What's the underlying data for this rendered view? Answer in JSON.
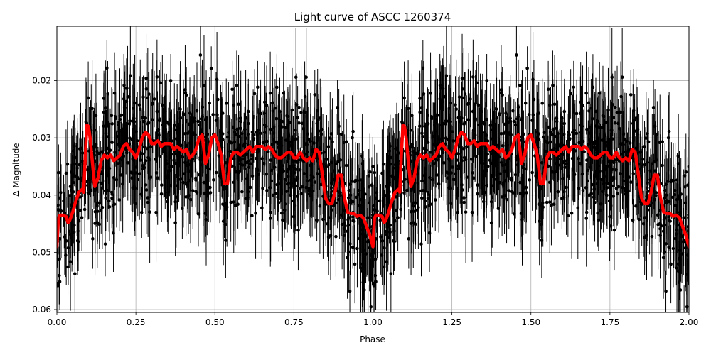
{
  "chart_data": {
    "type": "scatter",
    "title": "Light curve of ASCC 1260374",
    "xlabel": "Phase",
    "ylabel": "Δ Magnitude",
    "xlim": [
      0.0,
      2.0
    ],
    "ylim": [
      0.0605,
      0.0105
    ],
    "y_inverted": true,
    "grid": true,
    "xticks": [
      0.0,
      0.25,
      0.5,
      0.75,
      1.0,
      1.25,
      1.5,
      1.75,
      2.0
    ],
    "xtick_labels": [
      "0.00",
      "0.25",
      "0.50",
      "0.75",
      "1.00",
      "1.25",
      "1.50",
      "1.75",
      "2.00"
    ],
    "yticks": [
      0.02,
      0.03,
      0.04,
      0.05,
      0.06
    ],
    "ytick_labels": [
      "0.02",
      "0.03",
      "0.04",
      "0.05",
      "0.06"
    ],
    "series": [
      {
        "kind": "errorbar-points",
        "color": "#000000",
        "typical_scatter": 0.008,
        "typical_error": 0.006
      },
      {
        "kind": "binned-line",
        "color": "#ff0000",
        "x": [
          0.0,
          0.005,
          0.01,
          0.02,
          0.03,
          0.035,
          0.04,
          0.05,
          0.06,
          0.07,
          0.08,
          0.085,
          0.09,
          0.095,
          0.1,
          0.105,
          0.11,
          0.12,
          0.13,
          0.14,
          0.15,
          0.16,
          0.17,
          0.18,
          0.19,
          0.2,
          0.21,
          0.22,
          0.23,
          0.24,
          0.25,
          0.26,
          0.27,
          0.28,
          0.29,
          0.3,
          0.31,
          0.32,
          0.33,
          0.34,
          0.35,
          0.36,
          0.37,
          0.38,
          0.39,
          0.4,
          0.41,
          0.42,
          0.43,
          0.44,
          0.45,
          0.46,
          0.47,
          0.48,
          0.49,
          0.5,
          0.51,
          0.52,
          0.53,
          0.54,
          0.55,
          0.56,
          0.57,
          0.58,
          0.59,
          0.6,
          0.61,
          0.62,
          0.63,
          0.64,
          0.65,
          0.66,
          0.67,
          0.68,
          0.69,
          0.7,
          0.71,
          0.72,
          0.73,
          0.74,
          0.75,
          0.76,
          0.77,
          0.78,
          0.79,
          0.8,
          0.81,
          0.82,
          0.83,
          0.84,
          0.85,
          0.86,
          0.87,
          0.88,
          0.89,
          0.9,
          0.91,
          0.92,
          0.93,
          0.94,
          0.95,
          0.96,
          0.97,
          0.98,
          0.99,
          1.0
        ],
        "y": [
          0.049,
          0.044,
          0.0435,
          0.0435,
          0.0438,
          0.0448,
          0.0445,
          0.043,
          0.041,
          0.0395,
          0.039,
          0.0395,
          0.033,
          0.0278,
          0.028,
          0.03,
          0.033,
          0.0385,
          0.037,
          0.034,
          0.033,
          0.0335,
          0.033,
          0.034,
          0.0335,
          0.033,
          0.0315,
          0.031,
          0.032,
          0.0325,
          0.0335,
          0.032,
          0.03,
          0.029,
          0.0295,
          0.031,
          0.031,
          0.0305,
          0.0315,
          0.031,
          0.031,
          0.031,
          0.032,
          0.0315,
          0.032,
          0.0325,
          0.032,
          0.0335,
          0.033,
          0.032,
          0.03,
          0.0295,
          0.0345,
          0.033,
          0.03,
          0.0295,
          0.031,
          0.033,
          0.038,
          0.038,
          0.0335,
          0.0325,
          0.0325,
          0.033,
          0.0325,
          0.032,
          0.0315,
          0.0325,
          0.0315,
          0.0315,
          0.0315,
          0.032,
          0.0315,
          0.032,
          0.033,
          0.0335,
          0.0335,
          0.033,
          0.0325,
          0.0325,
          0.0335,
          0.0335,
          0.0325,
          0.0335,
          0.034,
          0.0335,
          0.034,
          0.032,
          0.0325,
          0.0365,
          0.0405,
          0.0415,
          0.0415,
          0.0395,
          0.0365,
          0.0365,
          0.0405,
          0.043,
          0.0432,
          0.0432,
          0.0437,
          0.0435,
          0.044,
          0.0455,
          0.047,
          0.049
        ]
      }
    ]
  }
}
